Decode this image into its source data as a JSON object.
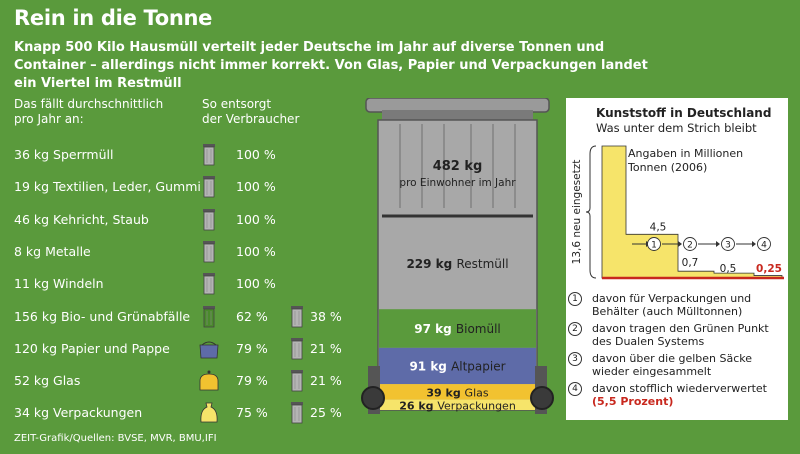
{
  "title": "Rein in die Tonne",
  "subtitle": "Knapp 500 Kilo Hausmüll verteilt jeder Deutsche im Jahr auf diverse Tonnen und Container – allerdings nicht immer korrekt. Von Glas, Papier und Verpackungen landet ein Viertel im Restmüll",
  "columns": {
    "left": [
      "Das fällt durchschnittlich",
      "pro Jahr an:"
    ],
    "right": [
      "So entsorgt",
      "der Verbraucher"
    ]
  },
  "rows": [
    {
      "label": "36 kg Sperrmüll",
      "bin1": "grey",
      "pct1": "100 %",
      "bin2": "",
      "pct2": ""
    },
    {
      "label": "19 kg Textilien, Leder, Gummi",
      "bin1": "grey",
      "pct1": "100 %",
      "bin2": "",
      "pct2": ""
    },
    {
      "label": "46 kg Kehricht, Staub",
      "bin1": "grey",
      "pct1": "100 %",
      "bin2": "",
      "pct2": ""
    },
    {
      "label": "8 kg Metalle",
      "bin1": "grey",
      "pct1": "100 %",
      "bin2": "",
      "pct2": ""
    },
    {
      "label": "11 kg Windeln",
      "bin1": "grey",
      "pct1": "100 %",
      "bin2": "",
      "pct2": ""
    },
    {
      "label": "156 kg Bio- und Grünabfälle",
      "bin1": "green",
      "pct1": "62 %",
      "bin2": "grey",
      "pct2": "38 %"
    },
    {
      "label": "120 kg Papier und Pappe",
      "bin1": "blue",
      "pct1": "79 %",
      "bin2": "grey",
      "pct2": "21 %"
    },
    {
      "label": "52 kg Glas",
      "bin1": "yellow-container",
      "pct1": "79 %",
      "bin2": "grey",
      "pct2": "21 %"
    },
    {
      "label": "34 kg Verpackungen",
      "bin1": "yellow-sack",
      "pct1": "75 %",
      "bin2": "grey",
      "pct2": "25 %"
    }
  ],
  "tonne": {
    "total_value": "482 kg",
    "total_label": "pro Einwohner im Jahr",
    "segments": [
      {
        "value": "229 kg",
        "label": "Restmüll",
        "kg": 229,
        "color": "#a8a8a8"
      },
      {
        "value": "97 kg",
        "label": "Biomüll",
        "kg": 97,
        "color": "#5a9a3c"
      },
      {
        "value": "91 kg",
        "label": "Altpapier",
        "kg": 91,
        "color": "#5e6ba8"
      },
      {
        "value": "39 kg",
        "label": "Glas",
        "kg": 39,
        "color": "#f2c230"
      },
      {
        "value": "26 kg",
        "label": "Verpackungen",
        "kg": 26,
        "color": "#f6e46a"
      }
    ]
  },
  "panel": {
    "title": "Kunststoff in Deutschland",
    "subtitle": "Was unter dem Strich bleibt",
    "note": "Angaben in Millionen Tonnen (2006)",
    "axis_label": "13,6 neu eingesetzt",
    "steps": [
      {
        "num": "1",
        "value": "4,5"
      },
      {
        "num": "2",
        "value": "0,7"
      },
      {
        "num": "3",
        "value": "0,5"
      },
      {
        "num": "4",
        "value": "0,25"
      }
    ],
    "legend": [
      {
        "num": "1",
        "text": "davon für Verpackungen und Behälter (auch Mülltonnen)"
      },
      {
        "num": "2",
        "text": "davon tragen den Grünen Punkt des Dualen Systems"
      },
      {
        "num": "3",
        "text": "davon über die gelben Säcke wieder eingesammelt"
      },
      {
        "num": "4",
        "text": "davon stofflich wiederverwertet",
        "highlight": "(5,5 Prozent)"
      }
    ]
  },
  "chart_data": [
    {
      "type": "bar",
      "title": "",
      "categories": [
        "Restmüll",
        "Biomüll",
        "Altpapier",
        "Glas",
        "Verpackungen"
      ],
      "values": [
        229,
        97,
        91,
        39,
        26
      ],
      "unit": "kg pro Einwohner im Jahr",
      "total": 482
    },
    {
      "type": "area",
      "title": "Kunststoff in Deutschland",
      "categories": [
        "neu eingesetzt",
        "1",
        "2",
        "3",
        "4"
      ],
      "values": [
        13.6,
        4.5,
        0.7,
        0.5,
        0.25
      ],
      "unit": "Millionen Tonnen (2006)"
    }
  ],
  "footer": "ZEIT-Grafik/Quellen: BVSE, MVR, BMU,IFI",
  "colors": {
    "background": "#5a9a3c",
    "grey_bin": "#b4b4b4",
    "yellow": "#f6e46a",
    "red": "#c8281e"
  }
}
